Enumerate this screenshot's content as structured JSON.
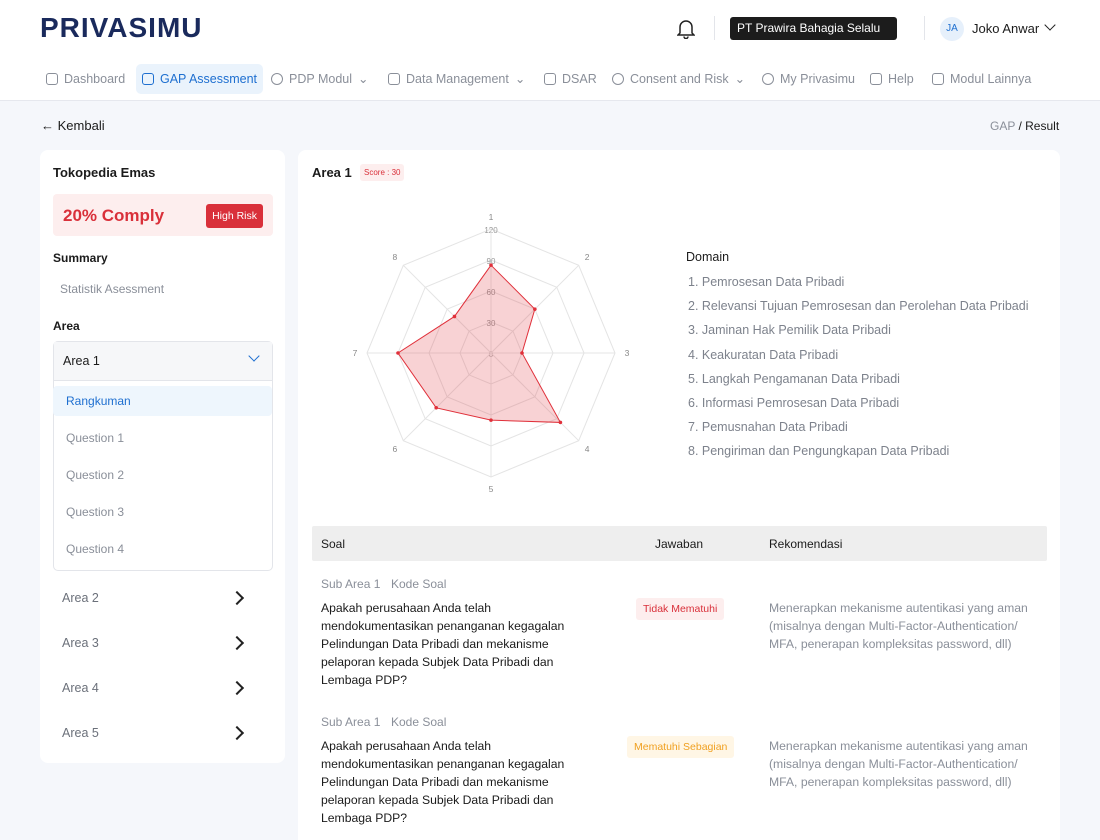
{
  "header": {
    "logo": "PRIVASIMU",
    "company": "PT Prawira Bahagia Selalu",
    "user_initials": "JA",
    "user_name": "Joko Anwar"
  },
  "nav": [
    "Dashboard",
    "GAP Assessment",
    "PDP Modul",
    "Data Management",
    "DSAR",
    "Consent and Risk",
    "My Privasimu",
    "Help",
    "Modul Lainnya"
  ],
  "back": "Kembali",
  "breadcrumb": [
    "GAP",
    "Result"
  ],
  "sidebar": {
    "title": "Tokopedia Emas",
    "comply": "20% Comply",
    "risk": "High Risk",
    "summary_heading": "Summary",
    "summary_item": "Statistik Asessment",
    "area_heading": "Area",
    "open_area": "Area 1",
    "sub_items": [
      "Rangkuman",
      "Question 1",
      "Question 2",
      "Question 3",
      "Question 4"
    ],
    "areas": [
      "Area 2",
      "Area 3",
      "Area 4",
      "Area 5"
    ]
  },
  "radar": {
    "type": "radar",
    "title": "Area 1",
    "score": "Score : 30",
    "axes": [
      "1",
      "2",
      "3",
      "4",
      "5",
      "6",
      "7",
      "8"
    ],
    "values": [
      85,
      60,
      30,
      95,
      65,
      75,
      90,
      50
    ],
    "rlim": [
      0,
      120
    ],
    "rticks": [
      0,
      30,
      60,
      90,
      120
    ],
    "color": "#e0303a"
  },
  "domain": {
    "heading": "Domain",
    "items": [
      "1. Pemrosesan Data Pribadi",
      "2. Relevansi Tujuan Pemrosesan dan Perolehan Data Pribadi",
      "3. Jaminan Hak Pemilik Data Pribadi",
      "4. Keakuratan Data Pribadi",
      "5. Langkah Pengamanan Data Pribadi",
      "6. Informasi Pemrosesan Data Pribadi",
      "7. Pemusnahan Data Pribadi",
      "8. Pengiriman dan Pengungkapan Data Pribadi"
    ]
  },
  "table": {
    "columns": [
      "Soal",
      "Jawaban",
      "Rekomendasi"
    ],
    "rows": [
      {
        "sub": "Sub Area 1",
        "code": "Kode Soal",
        "question": "Apakah perusahaan Anda telah mendokumentasikan penanganan kegagalan Pelindungan Data Pribadi dan mekanisme pelaporan kepada Subjek Data Pribadi dan Lembaga PDP?",
        "answer": "Tidak Mematuhi",
        "recommendation": "Menerapkan mekanisme autentikasi yang aman (misalnya dengan Multi-Factor-Authentication/ MFA, penerapan kompleksitas password, dll)"
      },
      {
        "sub": "Sub Area 1",
        "code": "Kode Soal",
        "question": "Apakah perusahaan Anda telah mendokumentasikan penanganan kegagalan Pelindungan Data Pribadi dan mekanisme pelaporan kepada Subjek Data Pribadi dan Lembaga PDP?",
        "answer": "Mematuhi Sebagian",
        "recommendation": "Menerapkan mekanisme autentikasi yang aman (misalnya dengan Multi-Factor-Authentication/ MFA, penerapan kompleksitas password, dll)"
      }
    ]
  }
}
